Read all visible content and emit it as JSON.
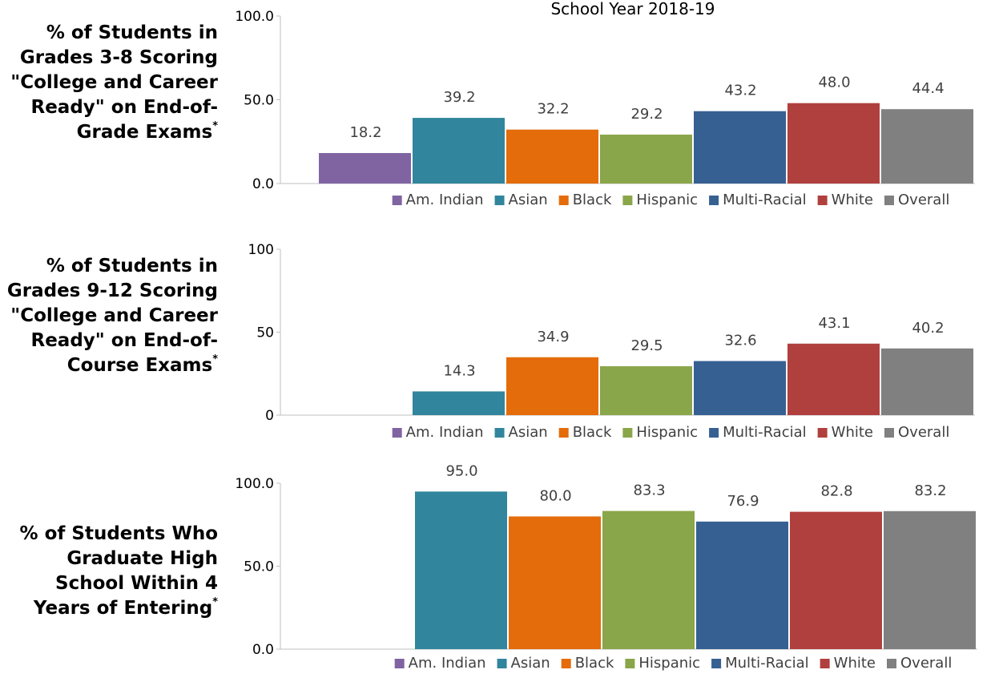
{
  "header": {
    "subtitle": "School Year 2018-19"
  },
  "colors": {
    "Am. Indian": "#8064a2",
    "Asian": "#31859c",
    "Black": "#e46c0a",
    "Hispanic": "#8aa64a",
    "Multi-Racial": "#366092",
    "White": "#b0403e",
    "Overall": "#808080"
  },
  "chart_data": [
    {
      "type": "bar",
      "row_label": [
        "% of Students in",
        "Grades 3-8 Scoring",
        "\"College and Career",
        "Ready\" on End-of-",
        "Grade Exams"
      ],
      "footnote_mark": "*",
      "categories": [
        "Am. Indian",
        "Asian",
        "Black",
        "Hispanic",
        "Multi-Racial",
        "White",
        "Overall"
      ],
      "values": [
        18.2,
        39.2,
        32.2,
        29.2,
        43.2,
        48.0,
        44.4
      ],
      "value_labels": [
        "18.2",
        "39.2",
        "32.2",
        "29.2",
        "43.2",
        "48.0",
        "44.4"
      ],
      "ylim": [
        0,
        100
      ],
      "yticks": [
        "0.0",
        "50.0",
        "100.0"
      ],
      "legend": [
        "Am. Indian",
        "Asian",
        "Black",
        "Hispanic",
        "Multi-Racial",
        "White",
        "Overall"
      ],
      "legend_position": "bottom",
      "grid": false
    },
    {
      "type": "bar",
      "row_label": [
        "% of Students in",
        "Grades 9-12 Scoring",
        "\"College and Career",
        "Ready\" on End-of-",
        "Course Exams"
      ],
      "footnote_mark": "*",
      "categories": [
        "Am. Indian",
        "Asian",
        "Black",
        "Hispanic",
        "Multi-Racial",
        "White",
        "Overall"
      ],
      "values": [
        null,
        14.3,
        34.9,
        29.5,
        32.6,
        43.1,
        40.2
      ],
      "value_labels": [
        "",
        "14.3",
        "34.9",
        "29.5",
        "32.6",
        "43.1",
        "40.2"
      ],
      "ylim": [
        0,
        100
      ],
      "yticks": [
        "0",
        "50",
        "100"
      ],
      "legend": [
        "Am. Indian",
        "Asian",
        "Black",
        "Hispanic",
        "Multi-Racial",
        "White",
        "Overall"
      ],
      "legend_position": "bottom",
      "grid": false
    },
    {
      "type": "bar",
      "row_label": [
        "% of Students Who",
        "Graduate High",
        "School Within 4",
        "Years of Entering"
      ],
      "footnote_mark": "*",
      "categories": [
        "Am. Indian",
        "Asian",
        "Black",
        "Hispanic",
        "Multi-Racial",
        "White",
        "Overall"
      ],
      "values": [
        null,
        95.0,
        80.0,
        83.3,
        76.9,
        82.8,
        83.2
      ],
      "value_labels": [
        "",
        "95.0",
        "80.0",
        "83.3",
        "76.9",
        "82.8",
        "83.2"
      ],
      "ylim": [
        0,
        100
      ],
      "yticks": [
        "0.0",
        "50.0",
        "100.0"
      ],
      "legend": [
        "Am. Indian",
        "Asian",
        "Black",
        "Hispanic",
        "Multi-Racial",
        "White",
        "Overall"
      ],
      "legend_position": "bottom",
      "grid": false
    }
  ]
}
